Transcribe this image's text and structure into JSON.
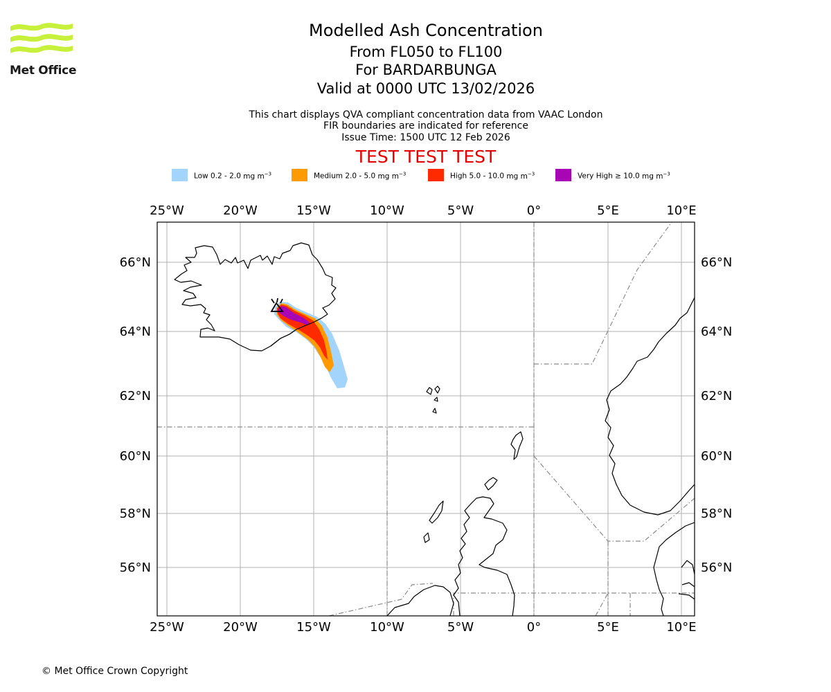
{
  "header": {
    "logo_text": "Met Office",
    "title": "Modelled Ash Concentration",
    "level_range": "From FL050 to FL100",
    "volcano": "For BARDARBUNGA",
    "valid_time": "Valid at 0000 UTC 13/02/2026",
    "note_1": "This chart displays QVA compliant concentration data from VAAC London",
    "note_2": "FIR boundaries are indicated for reference",
    "issue_time": "Issue Time: 1500 UTC 12 Feb 2026",
    "test_banner": "TEST TEST TEST"
  },
  "legend": {
    "unit_prefix": "mg m",
    "unit_exp": "−3",
    "items": [
      {
        "label": "Low 0.2 - 2.0",
        "color": "#a3d4fc"
      },
      {
        "label": "Medium 2.0 - 5.0",
        "color": "#ff9b00"
      },
      {
        "label": "High 5.0 - 10.0",
        "color": "#ff2a00"
      },
      {
        "label": "Very High ≥ 10.0",
        "color": "#a806b4"
      }
    ]
  },
  "map": {
    "lon_ticks": [
      "25°W",
      "20°W",
      "15°W",
      "10°W",
      "5°W",
      "0°",
      "5°E",
      "10°E"
    ],
    "lat_ticks": [
      "66°N",
      "64°N",
      "62°N",
      "60°N",
      "58°N",
      "56°N"
    ],
    "volcano_marker": "volcano-triangle",
    "colors": {
      "grid": "#b0b0b0",
      "fir": "#8a8a8a",
      "coast": "#000000"
    }
  },
  "footer": {
    "copyright": "© Met Office Crown Copyright"
  }
}
